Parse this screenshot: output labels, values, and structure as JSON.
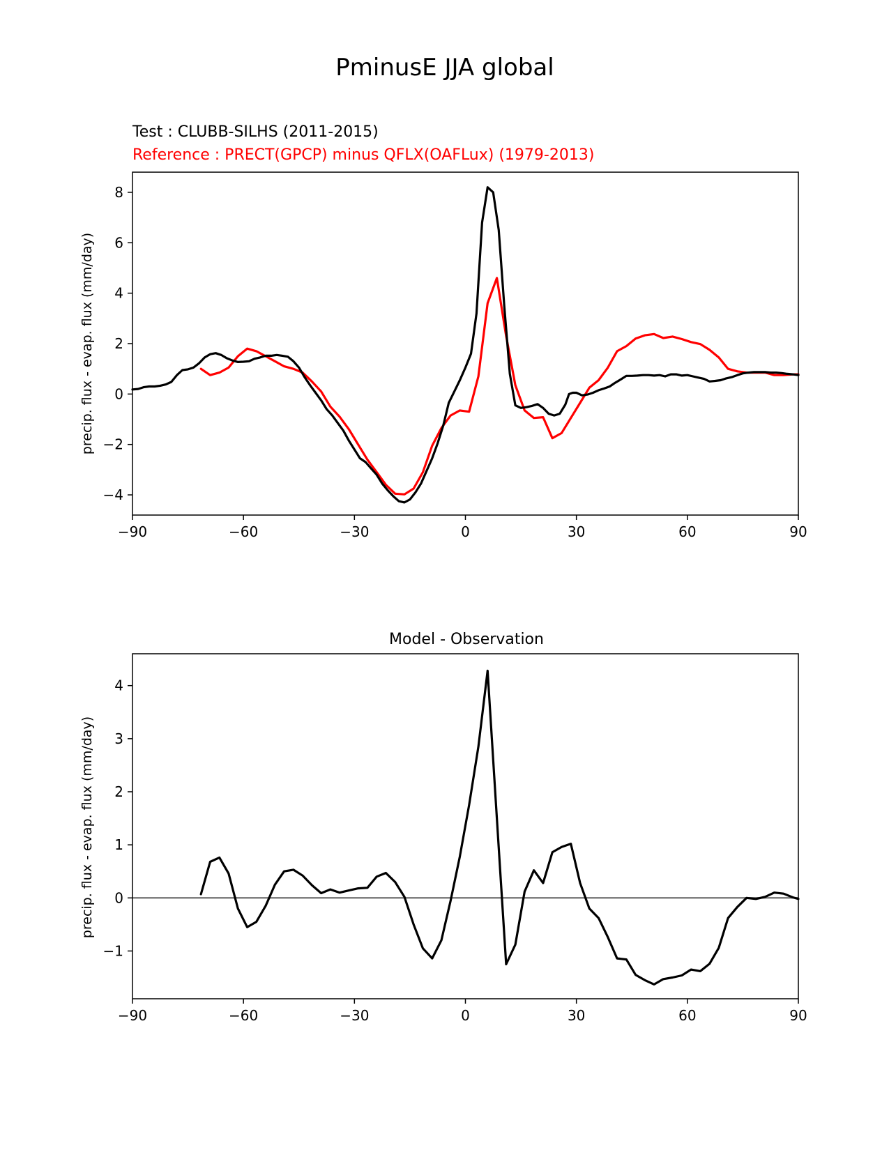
{
  "figure": {
    "title": "PminusE JJA global"
  },
  "chart_data": [
    {
      "type": "line",
      "title_test": "Test : CLUBB-SILHS (2011-2015)",
      "title_reference": "Reference : PRECT(GPCP) minus QFLX(OAFLux) (1979-2013)",
      "xlabel": "",
      "ylabel": "precip. flux - evap. flux (mm/day)",
      "xlim": [
        -90,
        90
      ],
      "ylim": [
        -4.8,
        8.8
      ],
      "xticks": [
        -90,
        -60,
        -30,
        0,
        30,
        60,
        90
      ],
      "xtick_labels": [
        "−90",
        "−60",
        "−30",
        "0",
        "30",
        "60",
        "90"
      ],
      "yticks": [
        -4,
        -2,
        0,
        2,
        4,
        6,
        8
      ],
      "ytick_labels": [
        "−4",
        "−2",
        "0",
        "2",
        "4",
        "6",
        "8"
      ],
      "grid": false,
      "series": [
        {
          "color": "#ff0000",
          "x": [
            -71.5,
            -69,
            -66.5,
            -64,
            -61.5,
            -59,
            -56.5,
            -54,
            -51.5,
            -49,
            -46.5,
            -44,
            -41.5,
            -39,
            -36.5,
            -34,
            -31.5,
            -29,
            -26.5,
            -24,
            -21.5,
            -19,
            -16.5,
            -14,
            -11.5,
            -9,
            -6.5,
            -4,
            -1.5,
            1,
            3.5,
            6,
            8.5,
            11,
            13.5,
            16,
            18.5,
            21,
            23.5,
            26,
            28.5,
            31,
            33.5,
            36,
            38.5,
            41,
            43.5,
            46,
            48.5,
            51,
            53.5,
            56,
            58.5,
            61,
            63.5,
            66,
            68.5,
            71,
            73.5,
            76,
            78.5,
            81,
            83.5,
            86,
            88.5,
            90
          ],
          "y": [
            1.0,
            0.75,
            0.85,
            1.05,
            1.5,
            1.8,
            1.7,
            1.5,
            1.3,
            1.1,
            1.0,
            0.85,
            0.5,
            0.1,
            -0.5,
            -0.9,
            -1.4,
            -2.0,
            -2.6,
            -3.1,
            -3.6,
            -3.95,
            -3.98,
            -3.75,
            -3.1,
            -2.05,
            -1.35,
            -0.85,
            -0.65,
            -0.7,
            0.7,
            3.6,
            4.6,
            2.3,
            0.35,
            -0.65,
            -0.95,
            -0.92,
            -1.75,
            -1.55,
            -0.95,
            -0.35,
            0.25,
            0.55,
            1.05,
            1.7,
            1.9,
            2.2,
            2.33,
            2.38,
            2.22,
            2.28,
            2.18,
            2.06,
            1.98,
            1.75,
            1.45,
            1.0,
            0.9,
            0.85,
            0.85,
            0.85,
            0.75,
            0.75,
            0.78,
            0.78
          ]
        },
        {
          "color": "#000000",
          "x": [
            -90,
            -88.5,
            -87,
            -85.5,
            -84,
            -82.5,
            -81,
            -79.5,
            -78,
            -76.5,
            -75,
            -73.5,
            -72,
            -70.5,
            -69,
            -67.5,
            -66,
            -64.5,
            -63,
            -61.5,
            -60,
            -58.5,
            -57,
            -55.5,
            -54,
            -52.5,
            -51,
            -49.5,
            -48,
            -46.5,
            -45,
            -43.5,
            -42,
            -40.5,
            -39,
            -37.5,
            -36,
            -34.5,
            -33,
            -31.5,
            -30,
            -28.5,
            -27,
            -25.5,
            -24,
            -22.5,
            -21,
            -19.5,
            -18,
            -16.5,
            -15,
            -13.5,
            -12,
            -10.5,
            -9,
            -7.5,
            -6,
            -4.5,
            -3,
            -1.5,
            0,
            1.5,
            3,
            4.5,
            6,
            7.5,
            9,
            10.5,
            12,
            13.5,
            15,
            16.5,
            18,
            19.5,
            21,
            22.5,
            24,
            25.5,
            27,
            28,
            29,
            30,
            31.5,
            33,
            34.5,
            36,
            37.5,
            39,
            40.5,
            42,
            43.5,
            45,
            46.5,
            48,
            49.5,
            51,
            52.5,
            54,
            55.5,
            57,
            58.5,
            60,
            61.5,
            63,
            64.5,
            66,
            67.5,
            69,
            70.5,
            72,
            73.5,
            75,
            76.5,
            78,
            79.5,
            81,
            82.5,
            84,
            85.5,
            87,
            88.5,
            90
          ],
          "y": [
            0.18,
            0.2,
            0.27,
            0.3,
            0.3,
            0.33,
            0.38,
            0.48,
            0.75,
            0.95,
            0.98,
            1.05,
            1.22,
            1.45,
            1.58,
            1.62,
            1.55,
            1.42,
            1.33,
            1.27,
            1.28,
            1.3,
            1.4,
            1.45,
            1.52,
            1.52,
            1.55,
            1.52,
            1.48,
            1.3,
            1.05,
            0.68,
            0.35,
            0.05,
            -0.25,
            -0.6,
            -0.85,
            -1.15,
            -1.45,
            -1.85,
            -2.2,
            -2.55,
            -2.7,
            -2.95,
            -3.2,
            -3.55,
            -3.82,
            -4.05,
            -4.25,
            -4.3,
            -4.18,
            -3.9,
            -3.55,
            -3.05,
            -2.55,
            -1.95,
            -1.25,
            -0.35,
            0.1,
            0.55,
            1.05,
            1.6,
            3.2,
            6.8,
            8.2,
            8.0,
            6.5,
            3.5,
            0.8,
            -0.45,
            -0.55,
            -0.52,
            -0.47,
            -0.4,
            -0.55,
            -0.78,
            -0.85,
            -0.78,
            -0.42,
            0.0,
            0.05,
            0.05,
            -0.05,
            -0.02,
            0.05,
            0.15,
            0.22,
            0.3,
            0.45,
            0.58,
            0.72,
            0.72,
            0.73,
            0.75,
            0.75,
            0.73,
            0.75,
            0.7,
            0.78,
            0.78,
            0.73,
            0.75,
            0.7,
            0.65,
            0.6,
            0.5,
            0.52,
            0.55,
            0.62,
            0.67,
            0.75,
            0.82,
            0.85,
            0.87,
            0.87,
            0.87,
            0.85,
            0.85,
            0.83,
            0.8,
            0.78,
            0.75
          ]
        }
      ]
    },
    {
      "type": "line",
      "title": "Model - Observation",
      "xlabel": "",
      "ylabel": "precip. flux - evap. flux (mm/day)",
      "xlim": [
        -90,
        90
      ],
      "ylim": [
        -1.9,
        4.6
      ],
      "xticks": [
        -90,
        -60,
        -30,
        0,
        30,
        60,
        90
      ],
      "xtick_labels": [
        "−90",
        "−60",
        "−30",
        "0",
        "30",
        "60",
        "90"
      ],
      "yticks": [
        -1,
        0,
        1,
        2,
        3,
        4
      ],
      "ytick_labels": [
        "−1",
        "0",
        "1",
        "2",
        "3",
        "4"
      ],
      "grid": false,
      "zero_line_color": "#808080",
      "series": [
        {
          "color": "#000000",
          "x": [
            -71.5,
            -69,
            -66.5,
            -64,
            -61.5,
            -59,
            -56.5,
            -54,
            -51.5,
            -49,
            -46.5,
            -44,
            -41.5,
            -39,
            -36.5,
            -34,
            -31.5,
            -29,
            -26.5,
            -24,
            -21.5,
            -19,
            -16.5,
            -14,
            -11.5,
            -9,
            -6.5,
            -4,
            -1.5,
            1,
            3.5,
            6,
            8.5,
            11,
            13.5,
            16,
            18.5,
            21,
            23.5,
            26,
            28.5,
            31,
            33.5,
            36,
            38.5,
            41,
            43.5,
            46,
            48.5,
            51,
            53.5,
            56,
            58.5,
            61,
            63.5,
            66,
            68.5,
            71,
            73.5,
            76,
            78.5,
            81,
            83.5,
            86,
            88.5,
            90
          ],
          "y": [
            0.07,
            0.68,
            0.76,
            0.46,
            -0.2,
            -0.55,
            -0.45,
            -0.15,
            0.25,
            0.5,
            0.53,
            0.42,
            0.24,
            0.09,
            0.16,
            0.1,
            0.14,
            0.18,
            0.19,
            0.4,
            0.47,
            0.3,
            0.02,
            -0.5,
            -0.95,
            -1.14,
            -0.8,
            -0.05,
            0.78,
            1.75,
            2.85,
            4.28,
            1.5,
            -1.25,
            -0.88,
            0.12,
            0.52,
            0.28,
            0.86,
            0.96,
            1.02,
            0.28,
            -0.2,
            -0.38,
            -0.74,
            -1.14,
            -1.16,
            -1.45,
            -1.55,
            -1.63,
            -1.53,
            -1.5,
            -1.46,
            -1.35,
            -1.38,
            -1.24,
            -0.94,
            -0.38,
            -0.17,
            0.0,
            -0.02,
            0.02,
            0.1,
            0.08,
            0.01,
            -0.02
          ]
        }
      ]
    }
  ]
}
